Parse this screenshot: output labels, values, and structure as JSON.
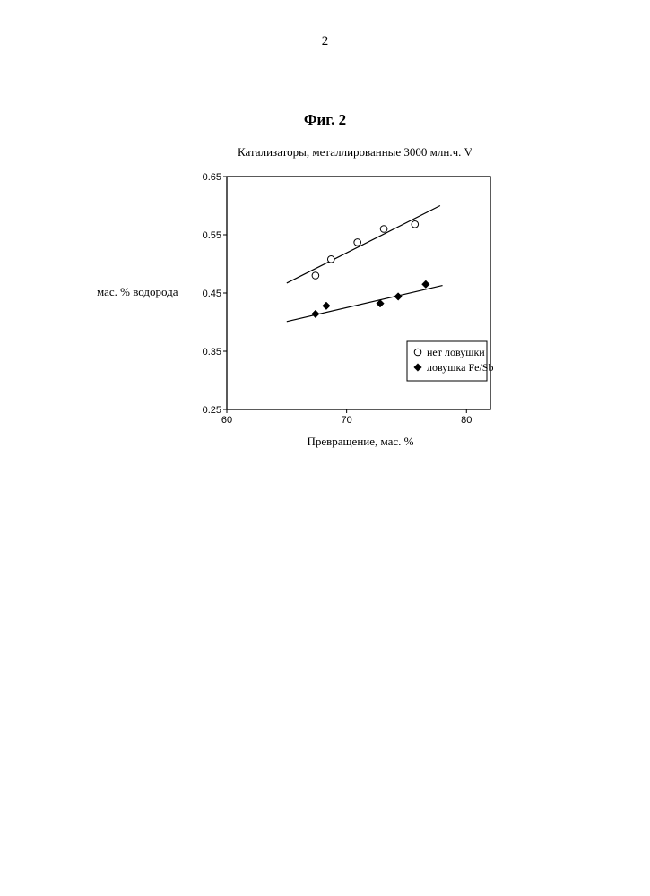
{
  "page": {
    "number": "2",
    "figure_label": "Фиг. 2"
  },
  "chart_data": {
    "type": "scatter",
    "title": "Катализаторы, металлированные 3000 млн.ч. V",
    "xlabel": "Превращение, мас. %",
    "ylabel": "мас. % водорода",
    "xlim": [
      60,
      82
    ],
    "ylim": [
      0.25,
      0.65
    ],
    "xticks": [
      60,
      70,
      80
    ],
    "xtick_labels": [
      "60",
      "70",
      "80"
    ],
    "yticks": [
      0.25,
      0.35,
      0.45,
      0.55,
      0.65
    ],
    "ytick_labels": [
      "0.25",
      "0.35",
      "0.45",
      "0.55",
      "0.65"
    ],
    "grid": false,
    "legend_position": "right",
    "series": [
      {
        "name": "нет ловушки",
        "marker": "open-circle",
        "x": [
          67.4,
          68.7,
          70.9,
          73.1,
          75.7
        ],
        "y": [
          0.48,
          0.508,
          0.537,
          0.56,
          0.568
        ],
        "trendline": {
          "x": [
            65,
            77.8
          ],
          "y": [
            0.467,
            0.6
          ]
        }
      },
      {
        "name": "ловушка Fe/Sb",
        "marker": "filled-diamond",
        "x": [
          67.4,
          68.3,
          72.8,
          74.3,
          76.6
        ],
        "y": [
          0.414,
          0.428,
          0.432,
          0.444,
          0.465
        ],
        "trendline": {
          "x": [
            65,
            78
          ],
          "y": [
            0.401,
            0.463
          ]
        }
      }
    ]
  }
}
